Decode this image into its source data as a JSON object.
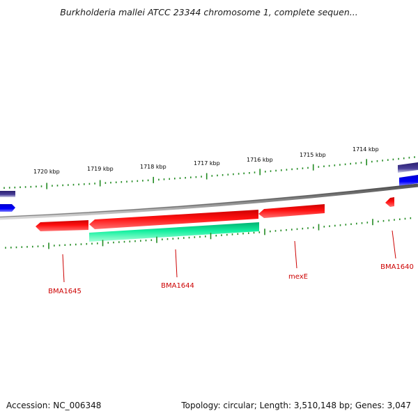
{
  "header": {
    "title": "Burkholderia mallei ATCC 23344 chromosome 1, complete sequen..."
  },
  "footer": {
    "accession": "Accession: NC_006348",
    "stats": "Topology: circular; Length: 3,510,148 bp; Genes: 3,047"
  },
  "ruler": {
    "tick_labels": [
      "1720 kbp",
      "1719 kbp",
      "1718 kbp",
      "1717 kbp",
      "1716 kbp",
      "1715 kbp",
      "1714 kbp"
    ]
  },
  "genes": [
    {
      "label": "BMA1645"
    },
    {
      "label": "BMA1644"
    },
    {
      "label": "mexE"
    },
    {
      "label": "BMA1640"
    }
  ],
  "colors": {
    "ruler_ticks": "#228b22",
    "backbone": "#7a7a7a",
    "gene_forward": "#ff0000",
    "gene_reverse_green": "#00e08a",
    "gene_blue": "#0000ff",
    "gene_navy": "#3b3080",
    "gene_label": "#cc0000"
  }
}
